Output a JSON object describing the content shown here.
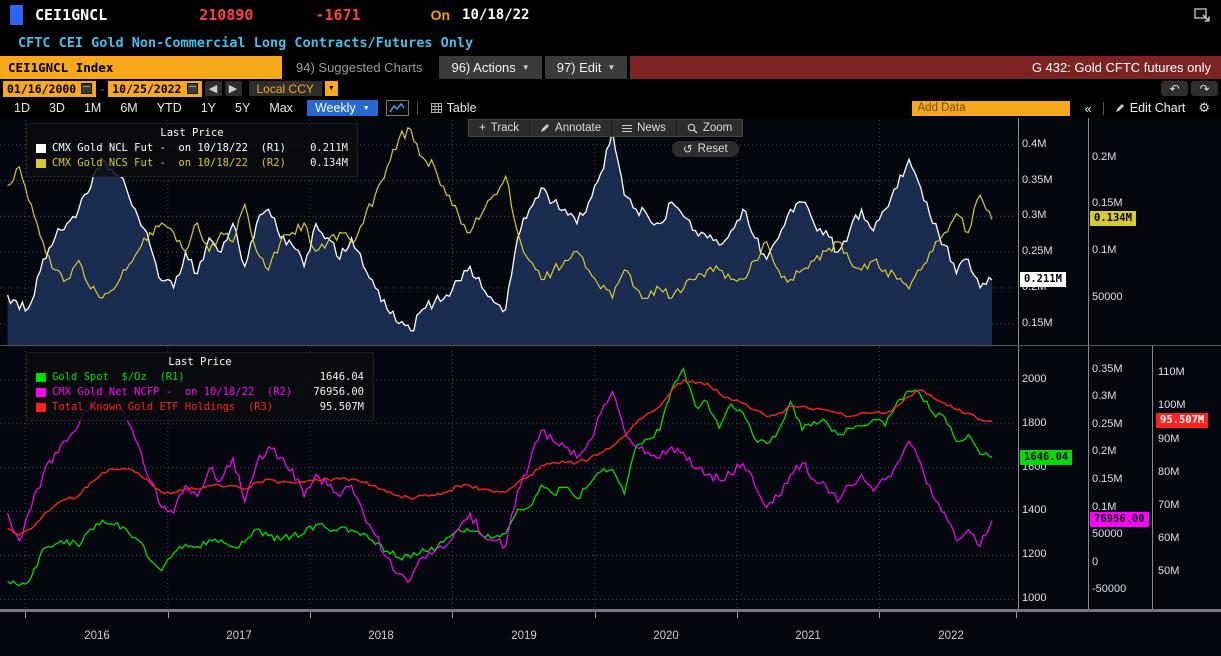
{
  "header": {
    "ticker": "CEI1GNCL",
    "last_value": "210890",
    "change": "-1671",
    "on_label": "On",
    "as_of_date": "10/18/22",
    "description": "CFTC CEI Gold Non-Commercial Long Contracts/Futures Only"
  },
  "toolbar": {
    "security_field": "CEI1GNCL Index",
    "suggested_charts": "94) Suggested Charts",
    "actions": "96) Actions",
    "edit": "97) Edit",
    "context_tag": "G 432: Gold CFTC futures only"
  },
  "range_bar": {
    "start_date": "01/16/2000",
    "end_date": "10/25/2022",
    "currency": "Local CCY"
  },
  "period_bar": {
    "tabs": [
      "1D",
      "3D",
      "1M",
      "6M",
      "YTD",
      "1Y",
      "5Y",
      "Max"
    ],
    "frequency": "Weekly",
    "table_label": "Table",
    "add_data_placeholder": "Add Data",
    "collapse": "«",
    "edit_chart": "Edit Chart"
  },
  "chart_tools": {
    "track": "Track",
    "annotate": "Annotate",
    "news": "News",
    "zoom": "Zoom",
    "reset": "Reset"
  },
  "colors": {
    "amber": "#f7a81b",
    "red_text": "#ff4040",
    "cyan": "#3fc1f0",
    "freq_blue": "#2468d0",
    "context_red": "#7c2323",
    "ncl_white": "#ffffff",
    "ncs_yellow": "#d8c832",
    "spot_green": "#00dd00",
    "ncfp_magenta": "#ff00ff",
    "etf_red": "#ff2020",
    "area_navy": "#1a2c50"
  },
  "chart_data": {
    "type": "line",
    "x_axis": {
      "range": [
        2015.85,
        2022.96
      ],
      "year_ticks": [
        2016,
        2017,
        2018,
        2019,
        2020,
        2021,
        2022
      ],
      "labels": [
        "2016",
        "2017",
        "2018",
        "2019",
        "2020",
        "2021",
        "2022"
      ]
    },
    "panels": [
      {
        "name": "futures-panel",
        "legend_title": "Last Price",
        "axes": {
          "R1": {
            "range": [
              0.12,
              0.435
            ],
            "ticks": [
              0.4,
              0.35,
              0.3,
              0.25,
              0.2,
              0.15
            ],
            "tick_labels": [
              "0.4M",
              "0.35M",
              "0.3M",
              "0.25M",
              "0.2M",
              "0.15M"
            ],
            "badge": {
              "value": 0.211,
              "label": "0.211M",
              "bg": "#ffffff",
              "fg": "#000000"
            }
          },
          "R2": {
            "range": [
              0.0,
              0.24
            ],
            "ticks": [
              0.2,
              0.15,
              0.1,
              0.05
            ],
            "tick_labels": [
              "0.2M",
              "0.15M",
              "0.1M",
              "50000"
            ],
            "badge": {
              "value": 0.134,
              "label": "0.134M",
              "bg": "#d8c832",
              "fg": "#000000"
            }
          }
        },
        "series": [
          {
            "name": "CMX Gold NCL Fut -  on 10/18/22  (R1)",
            "display_value": "0.211M",
            "axis": "R1",
            "color": "#ffffff",
            "fill": "#1a2c50",
            "width": 1.3,
            "jitter": 0.008,
            "x0": 2015.875,
            "dx": 0.08333,
            "values": [
              0.19,
              0.17,
              0.18,
              0.24,
              0.27,
              0.29,
              0.31,
              0.34,
              0.38,
              0.36,
              0.34,
              0.3,
              0.26,
              0.21,
              0.2,
              0.25,
              0.22,
              0.27,
              0.25,
              0.29,
              0.23,
              0.29,
              0.31,
              0.27,
              0.26,
              0.23,
              0.29,
              0.27,
              0.24,
              0.27,
              0.23,
              0.2,
              0.17,
              0.15,
              0.14,
              0.17,
              0.18,
              0.19,
              0.21,
              0.23,
              0.2,
              0.18,
              0.17,
              0.27,
              0.31,
              0.34,
              0.32,
              0.31,
              0.29,
              0.32,
              0.36,
              0.42,
              0.33,
              0.31,
              0.3,
              0.29,
              0.32,
              0.3,
              0.28,
              0.27,
              0.26,
              0.28,
              0.31,
              0.27,
              0.24,
              0.27,
              0.31,
              0.32,
              0.29,
              0.28,
              0.25,
              0.28,
              0.31,
              0.28,
              0.31,
              0.34,
              0.38,
              0.34,
              0.29,
              0.26,
              0.22,
              0.24,
              0.2,
              0.211
            ]
          },
          {
            "name": "CMX Gold NCS Fut -  on 10/18/22  (R2)",
            "display_value": "0.134M",
            "axis": "R2",
            "color": "#d8c832",
            "width": 1.2,
            "jitter": 0.006,
            "x0": 2015.875,
            "dx": 0.08333,
            "values": [
              0.17,
              0.19,
              0.15,
              0.11,
              0.08,
              0.07,
              0.09,
              0.06,
              0.05,
              0.06,
              0.08,
              0.1,
              0.12,
              0.13,
              0.12,
              0.1,
              0.13,
              0.1,
              0.12,
              0.11,
              0.15,
              0.1,
              0.08,
              0.11,
              0.12,
              0.13,
              0.1,
              0.11,
              0.12,
              0.11,
              0.13,
              0.16,
              0.19,
              0.22,
              0.23,
              0.2,
              0.19,
              0.16,
              0.14,
              0.12,
              0.14,
              0.16,
              0.18,
              0.12,
              0.09,
              0.07,
              0.08,
              0.09,
              0.1,
              0.08,
              0.06,
              0.05,
              0.08,
              0.06,
              0.05,
              0.06,
              0.05,
              0.06,
              0.07,
              0.08,
              0.08,
              0.07,
              0.07,
              0.09,
              0.11,
              0.08,
              0.07,
              0.08,
              0.09,
              0.1,
              0.11,
              0.09,
              0.08,
              0.09,
              0.08,
              0.07,
              0.06,
              0.08,
              0.1,
              0.12,
              0.14,
              0.12,
              0.16,
              0.134
            ]
          }
        ]
      },
      {
        "name": "spot-etf-panel",
        "legend_title": "Last Price",
        "axes": {
          "R1": {
            "range": [
              960,
              2150
            ],
            "ticks": [
              2000,
              1800,
              1600,
              1400,
              1200,
              1000
            ],
            "tick_labels": [
              "2000",
              "1800",
              "1600",
              "1400",
              "1200",
              "1000"
            ],
            "badge": {
              "value": 1646.04,
              "label": "1646.04",
              "bg": "#00dd00",
              "fg": "#000000"
            }
          },
          "R2": {
            "range": [
              -82000,
              391000
            ],
            "ticks": [
              350000,
              300000,
              250000,
              200000,
              150000,
              100000,
              50000,
              0,
              -50000
            ],
            "tick_labels": [
              "0.35M",
              "0.3M",
              "0.25M",
              "0.2M",
              "0.15M",
              "0.1M",
              "50000",
              "0",
              "-50000"
            ],
            "badge": {
              "value": 76956,
              "label": "76956.00",
              "bg": "#ff00ff",
              "fg": "#000000"
            }
          },
          "R3": {
            "range": [
              39,
              118
            ],
            "ticks": [
              110,
              100,
              90,
              80,
              70,
              60,
              50
            ],
            "tick_labels": [
              "110M",
              "100M",
              "90M",
              "80M",
              "70M",
              "60M",
              "50M"
            ],
            "badge": {
              "value": 95.507,
              "label": "95.507M",
              "bg": "#ff2020",
              "fg": "#ffffff"
            }
          }
        },
        "series": [
          {
            "name": "Gold Spot  $/Oz  (R1)",
            "display_value": "1646.04",
            "axis": "R1",
            "color": "#00dd00",
            "width": 1.3,
            "jitter": 16,
            "x0": 2015.875,
            "dx": 0.08333,
            "values": [
              1080,
              1062,
              1100,
              1230,
              1250,
              1270,
              1240,
              1320,
              1360,
              1340,
              1320,
              1270,
              1180,
              1130,
              1210,
              1250,
              1240,
              1270,
              1270,
              1240,
              1260,
              1320,
              1290,
              1270,
              1290,
              1300,
              1340,
              1320,
              1325,
              1315,
              1300,
              1250,
              1220,
              1190,
              1190,
              1230,
              1220,
              1280,
              1320,
              1310,
              1290,
              1280,
              1300,
              1410,
              1420,
              1520,
              1480,
              1510,
              1460,
              1520,
              1580,
              1590,
              1480,
              1700,
              1730,
              1770,
              1960,
              2050,
              1880,
              1900,
              1780,
              1890,
              1850,
              1730,
              1710,
              1770,
              1900,
              1770,
              1810,
              1810,
              1750,
              1780,
              1790,
              1820,
              1790,
              1900,
              1950,
              1930,
              1850,
              1830,
              1720,
              1750,
              1660,
              1646.04
            ]
          },
          {
            "name": "CMX Gold Net NCFP -  on 10/18/22  (R2)",
            "display_value": "76956.00",
            "axis": "R2",
            "color": "#ff00ff",
            "width": 1.2,
            "jitter": 9000,
            "x0": 2015.875,
            "dx": 0.08333,
            "values": [
              90000,
              40000,
              100000,
              160000,
              200000,
              220000,
              250000,
              286000,
              315000,
              300000,
              260000,
              215000,
              150000,
              100000,
              90000,
              140000,
              120000,
              170000,
              150000,
              190000,
              110000,
              180000,
              210000,
              190000,
              170000,
              120000,
              160000,
              140000,
              120000,
              140000,
              90000,
              50000,
              10000,
              -20000,
              -30000,
              10000,
              20000,
              30000,
              60000,
              90000,
              50000,
              40000,
              30000,
              130000,
              180000,
              240000,
              220000,
              210000,
              190000,
              220000,
              270000,
              310000,
              240000,
              210000,
              200000,
              190000,
              210000,
              200000,
              170000,
              160000,
              150000,
              160000,
              180000,
              140000,
              100000,
              120000,
              160000,
              180000,
              150000,
              140000,
              110000,
              140000,
              160000,
              130000,
              150000,
              180000,
              220000,
              180000,
              120000,
              90000,
              40000,
              60000,
              30000,
              76956
            ]
          },
          {
            "name": "Total Known Gold ETF Holdings  (R3)",
            "display_value": "95.507M",
            "axis": "R3",
            "color": "#ff2020",
            "width": 1.4,
            "jitter": 0.5,
            "x0": 2015.875,
            "dx": 0.08333,
            "values": [
              63,
              61,
              63,
              67,
              70,
              72,
              73,
              77,
              80,
              81,
              81,
              80,
              77,
              74,
              74,
              75,
              75,
              76,
              76,
              76,
              75,
              77,
              78,
              77,
              77,
              77,
              78,
              78,
              78,
              78,
              77,
              76,
              74,
              73,
              72,
              73,
              73,
              74,
              76,
              76,
              75,
              74,
              74,
              77,
              79,
              82,
              83,
              83,
              83,
              84,
              86,
              88,
              91,
              95,
              98,
              100,
              105,
              108,
              107,
              107,
              104,
              102,
              101,
              99,
              97,
              98,
              100,
              100,
              99,
              99,
              98,
              97,
              98,
              98,
              98,
              100,
              103,
              105,
              103,
              101,
              99,
              98,
              96,
              95.507
            ]
          }
        ]
      }
    ]
  }
}
